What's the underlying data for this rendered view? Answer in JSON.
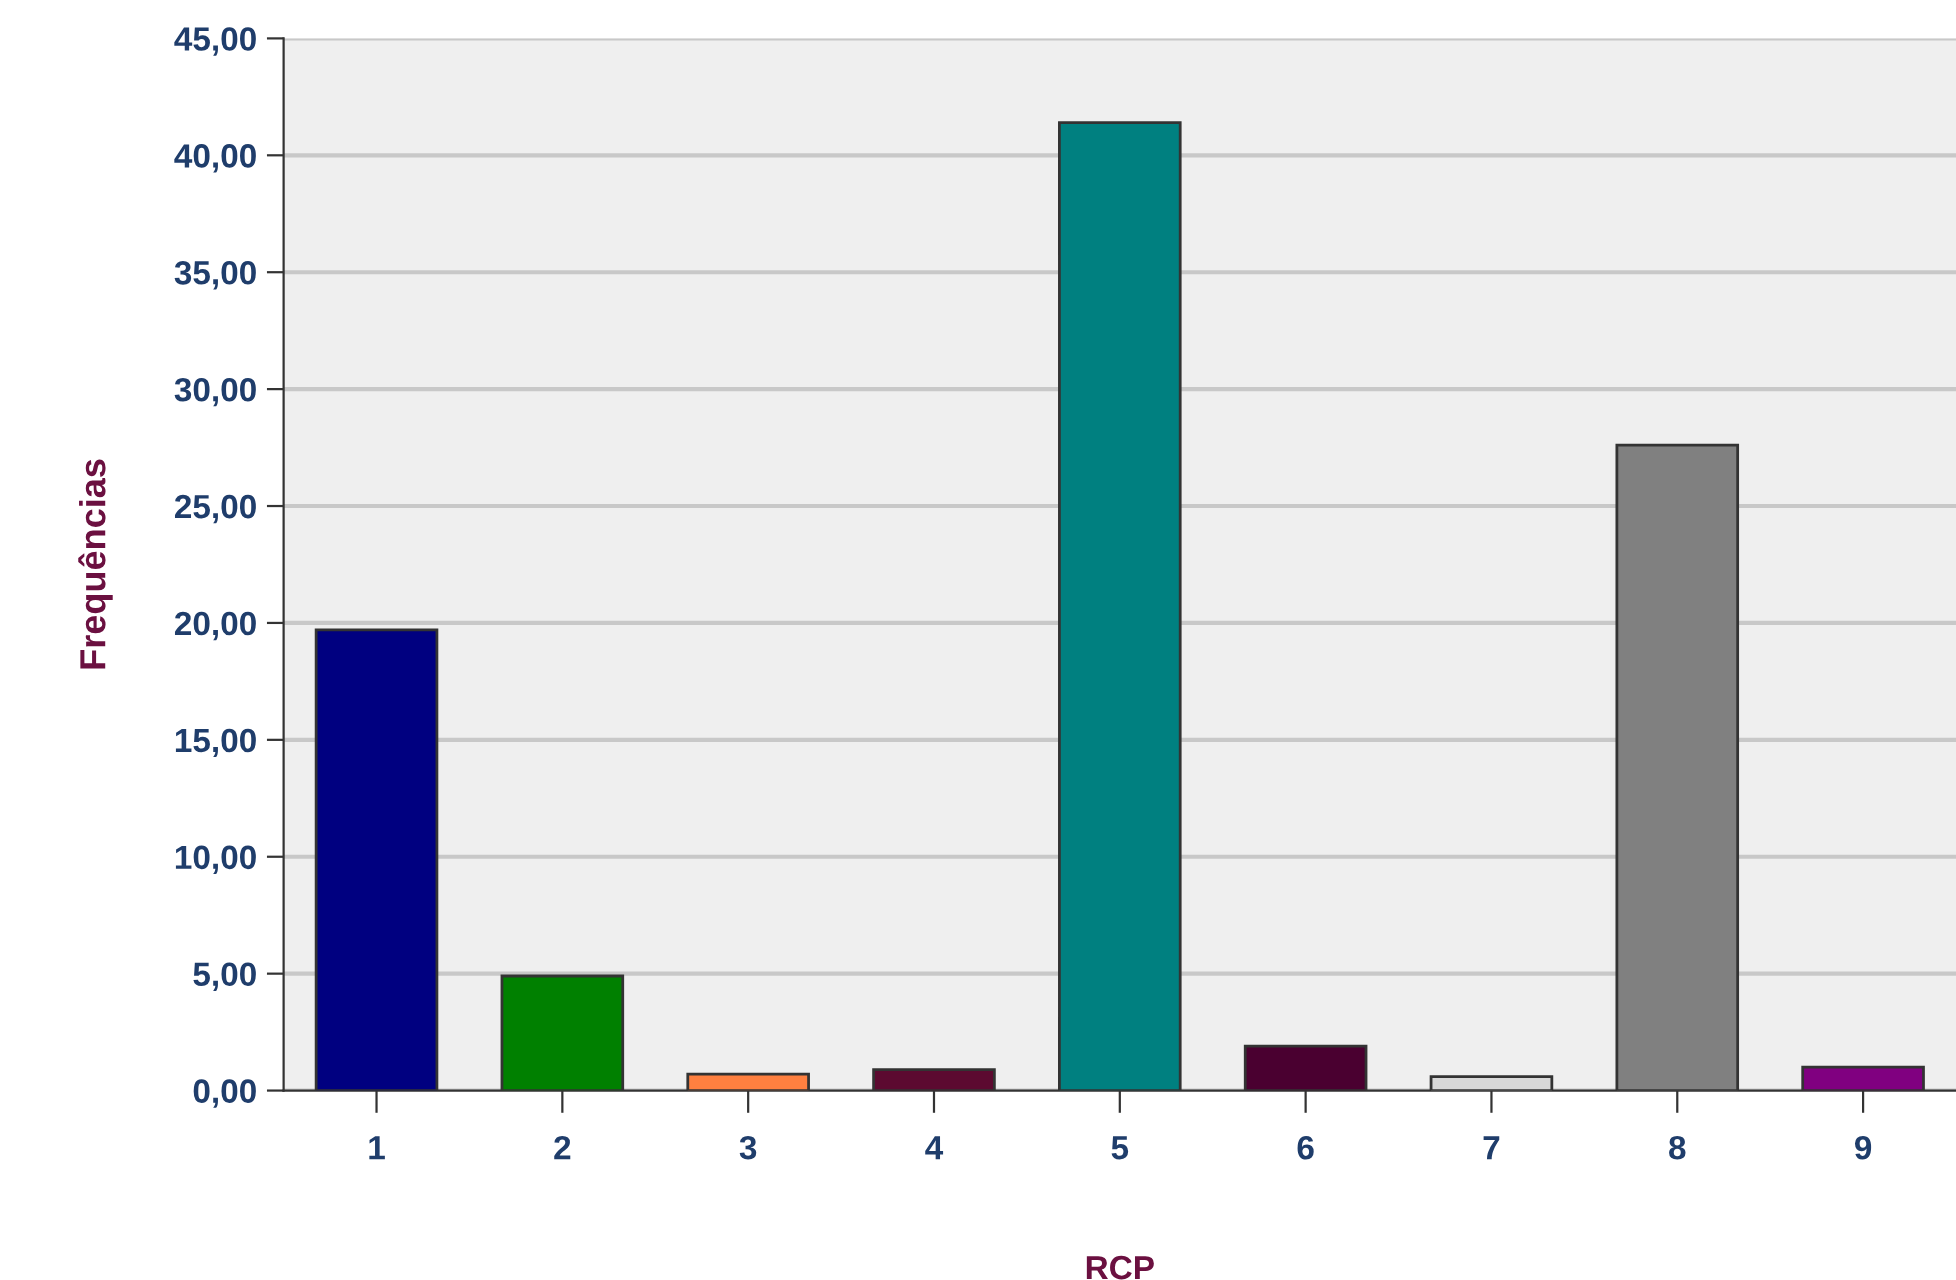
{
  "chart_data": {
    "type": "bar",
    "xlabel": "RCP",
    "ylabel": "Frequências",
    "categories": [
      "1",
      "2",
      "3",
      "4",
      "5",
      "6",
      "7",
      "8",
      "9"
    ],
    "values": [
      19.7,
      4.9,
      0.7,
      0.9,
      41.4,
      1.9,
      0.6,
      27.6,
      1.0
    ],
    "colors": [
      "#000080",
      "#008000",
      "#ff8040",
      "#5c0a30",
      "#008080",
      "#4a0030",
      "#d8d8d8",
      "#808080",
      "#800080"
    ],
    "ylim": [
      0,
      45
    ],
    "yticks": [
      {
        "value": 0,
        "label": "0,00"
      },
      {
        "value": 5,
        "label": "5,00"
      },
      {
        "value": 10,
        "label": "10,00"
      },
      {
        "value": 15,
        "label": "15,00"
      },
      {
        "value": 20,
        "label": "20,00"
      },
      {
        "value": 25,
        "label": "25,00"
      },
      {
        "value": 30,
        "label": "30,00"
      },
      {
        "value": 35,
        "label": "35,00"
      },
      {
        "value": 40,
        "label": "40,00"
      },
      {
        "value": 45,
        "label": "45,00"
      }
    ],
    "grid": "y"
  }
}
